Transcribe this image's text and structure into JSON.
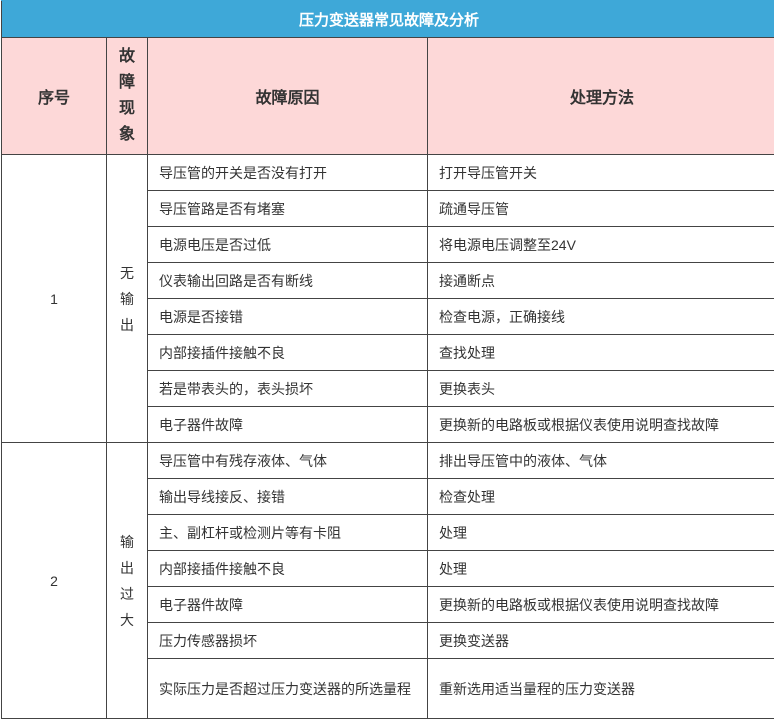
{
  "title": "压力变送器常见故障及分析",
  "headers": {
    "no": "序号",
    "phenomenon": "故\n障\n现\n象",
    "phenomenon_chars": [
      "故",
      "障",
      "现",
      "象"
    ],
    "cause": "故障原因",
    "method": "处理方法"
  },
  "groups": [
    {
      "no": "1",
      "phenomenon_chars": [
        "无",
        "输",
        "出"
      ],
      "rows": [
        {
          "cause": "导压管的开关是否没有打开",
          "method": "打开导压管开关"
        },
        {
          "cause": "导压管路是否有堵塞",
          "method": "疏通导压管"
        },
        {
          "cause": "电源电压是否过低",
          "method": "将电源电压调整至24V"
        },
        {
          "cause": "仪表输出回路是否有断线",
          "method": "接通断点"
        },
        {
          "cause": "电源是否接错",
          "method": "检查电源，正确接线"
        },
        {
          "cause": "内部接插件接触不良",
          "method": "查找处理"
        },
        {
          "cause": "若是带表头的，表头损坏",
          "method": "更换表头"
        },
        {
          "cause": "电子器件故障",
          "method": "更换新的电路板或根据仪表使用说明查找故障"
        }
      ]
    },
    {
      "no": "2",
      "phenomenon_chars": [
        "输",
        "出",
        "过",
        "大"
      ],
      "rows": [
        {
          "cause": "导压管中有残存液体、气体",
          "method": "排出导压管中的液体、气体"
        },
        {
          "cause": "输出导线接反、接错",
          "method": "检查处理"
        },
        {
          "cause": "主、副杠杆或检测片等有卡阻",
          "method": "处理"
        },
        {
          "cause": "内部接插件接触不良",
          "method": "处理"
        },
        {
          "cause": "电子器件故障",
          "method": "更换新的电路板或根据仪表使用说明查找故障"
        },
        {
          "cause": "压力传感器损坏",
          "method": "更换变送器"
        },
        {
          "cause": "实际压力是否超过压力变送器的所选量程",
          "method": "重新选用适当量程的压力变送器"
        }
      ]
    }
  ],
  "colors": {
    "title_bg": "#3ea8d8",
    "header_bg": "#fdd8d8"
  }
}
